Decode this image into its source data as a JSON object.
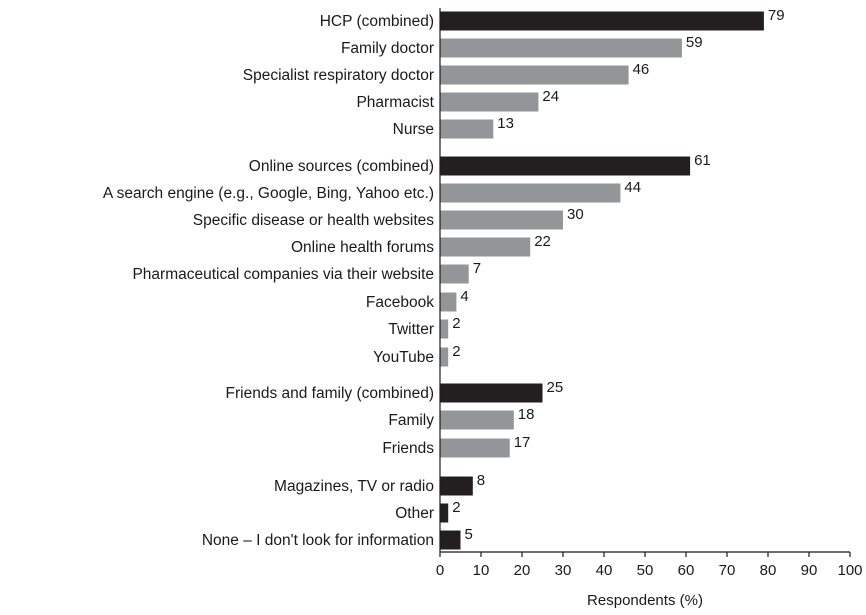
{
  "chart_data": {
    "type": "bar",
    "orientation": "horizontal",
    "title": "",
    "xlabel": "Respondents (%)",
    "ylabel": "",
    "xlim": [
      0,
      100
    ],
    "xticks": [
      "0",
      "10",
      "20",
      "30",
      "40",
      "50",
      "60",
      "70",
      "80",
      "90",
      "100"
    ],
    "grid": false,
    "colors": {
      "combined": "#231f20",
      "sub": "#939598"
    },
    "bars": [
      {
        "label": "HCP (combined)",
        "value": 79,
        "kind": "combined"
      },
      {
        "label": "Family doctor",
        "value": 59,
        "kind": "sub"
      },
      {
        "label": "Specialist respiratory doctor",
        "value": 46,
        "kind": "sub"
      },
      {
        "label": "Pharmacist",
        "value": 24,
        "kind": "sub"
      },
      {
        "label": "Nurse",
        "value": 13,
        "kind": "sub"
      },
      {
        "label": "Online sources (combined)",
        "value": 61,
        "kind": "combined"
      },
      {
        "label": "A search engine (e.g., Google, Bing, Yahoo etc.)",
        "value": 44,
        "kind": "sub"
      },
      {
        "label": "Specific disease or health websites",
        "value": 30,
        "kind": "sub"
      },
      {
        "label": "Online health forums",
        "value": 22,
        "kind": "sub"
      },
      {
        "label": "Pharmaceutical companies via their website",
        "value": 7,
        "kind": "sub"
      },
      {
        "label": "Facebook",
        "value": 4,
        "kind": "sub"
      },
      {
        "label": "Twitter",
        "value": 2,
        "kind": "sub"
      },
      {
        "label": "YouTube",
        "value": 2,
        "kind": "sub"
      },
      {
        "label": "Friends and family (combined)",
        "value": 25,
        "kind": "combined"
      },
      {
        "label": "Family",
        "value": 18,
        "kind": "sub"
      },
      {
        "label": "Friends",
        "value": 17,
        "kind": "sub"
      },
      {
        "label": "Magazines, TV or radio",
        "value": 8,
        "kind": "combined"
      },
      {
        "label": "Other",
        "value": 2,
        "kind": "combined"
      },
      {
        "label": "None – I don't look for information",
        "value": 5,
        "kind": "combined"
      }
    ]
  }
}
